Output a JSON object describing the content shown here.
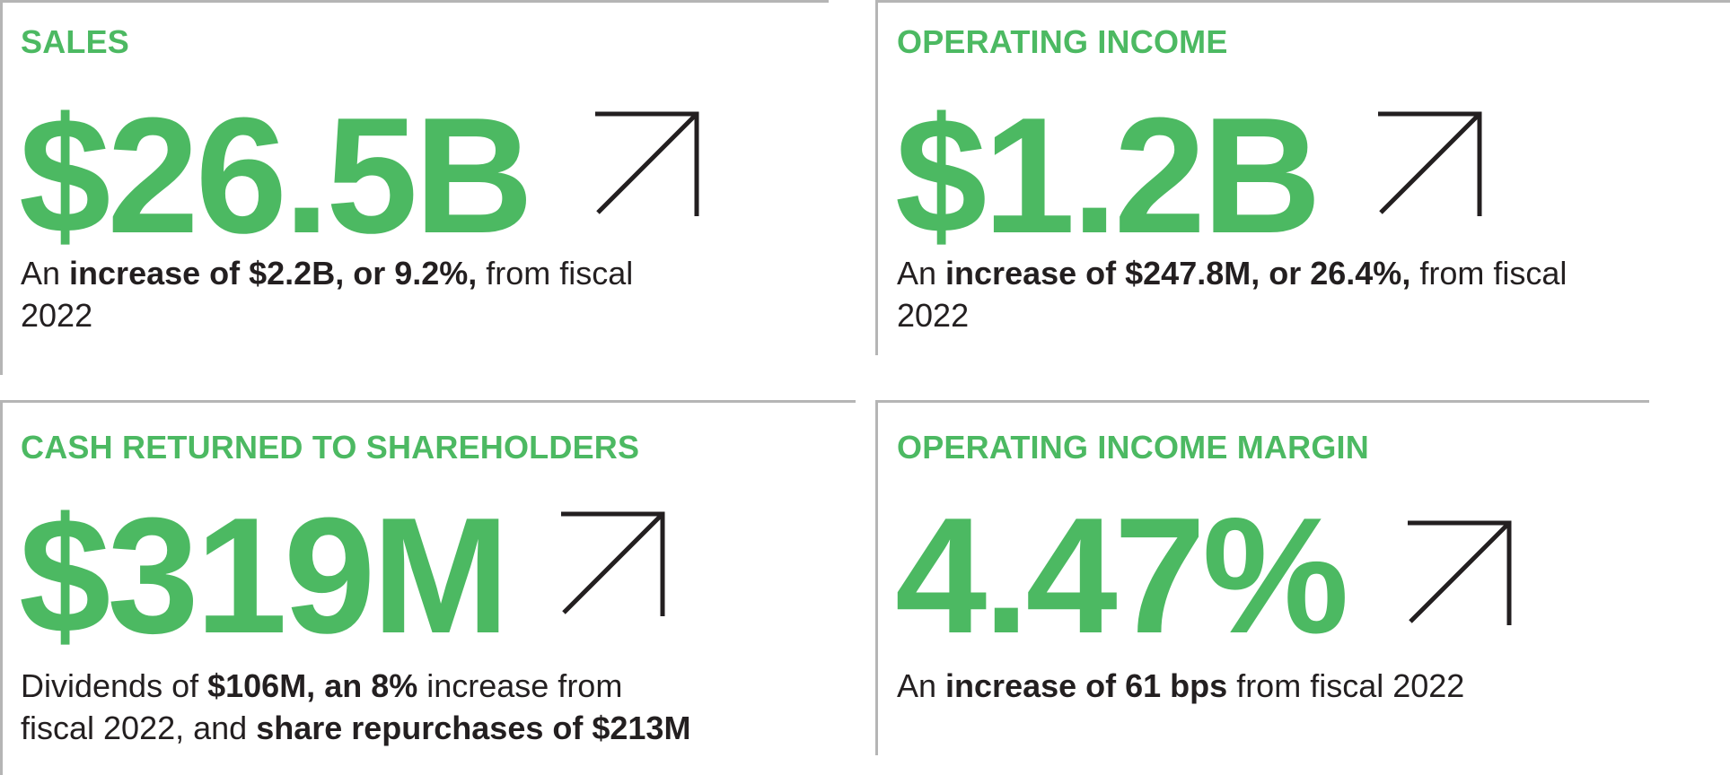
{
  "panels": {
    "sales": {
      "label": "SALES",
      "value": "$26.5B",
      "desc": {
        "pre": "An ",
        "bold": "increase of $2.2B, or 9.2%,",
        "mid": " from fiscal",
        "post": "2022"
      }
    },
    "operating_income": {
      "label": "OPERATING INCOME",
      "value": "$1.2B",
      "desc": {
        "pre": "An ",
        "bold": "increase of $247.8M, or 26.4%,",
        "mid": " from fiscal",
        "post": "2022"
      }
    },
    "cash_returned": {
      "label": "CASH RETURNED TO SHAREHOLDERS",
      "value": "$319M",
      "desc": {
        "line1_pre": "Dividends of ",
        "line1_bold": "$106M, an 8%",
        "line1_post": " increase from",
        "line2_pre": "fiscal 2022, and ",
        "line2_bold": "share repurchases of $213M"
      }
    },
    "operating_income_margin": {
      "label": "OPERATING INCOME MARGIN",
      "value": "4.47%",
      "desc": {
        "pre": "An ",
        "bold": "increase of 61 bps",
        "post": " from fiscal 2022"
      }
    }
  },
  "colors": {
    "accent": "#4cb962",
    "text": "#231f20",
    "divider": "#b5b5b5"
  },
  "icons": {
    "trend": "arrow-up-right-icon"
  }
}
